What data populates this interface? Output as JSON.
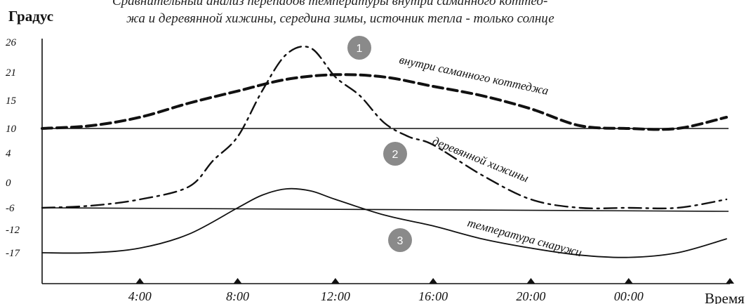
{
  "chart_data": {
    "type": "line",
    "title_line1": "Сравнительный анализ перепадов температуры внутри саманного коттед-",
    "title_line2": "жа и деревянной хижины, середина зимы, источник тепла - только солнце",
    "ylabel": "Градус",
    "xlabel": "Время",
    "y_ticks": [
      "26",
      "21",
      "15",
      "10",
      "4",
      "0",
      "-6",
      "-12",
      "-17"
    ],
    "x_ticks": [
      {
        "label": "4:00",
        "hours": 4
      },
      {
        "label": "8:00",
        "hours": 8
      },
      {
        "label": "12:00",
        "hours": 12
      },
      {
        "label": "16:00",
        "hours": 16
      },
      {
        "label": "20:00",
        "hours": 20
      },
      {
        "label": "00:00",
        "hours": 24
      }
    ],
    "x_range_hours": [
      0,
      28
    ],
    "reference_lines": [
      10,
      -6
    ],
    "series": [
      {
        "name": "внутри саманного коттеджа",
        "style": "dashed",
        "x": [
          0,
          2,
          4,
          6,
          8,
          10,
          12,
          14,
          16,
          18,
          20,
          22,
          24,
          26,
          28
        ],
        "y": [
          10,
          10.5,
          12,
          14.5,
          17,
          19.5,
          20.5,
          20,
          18,
          16,
          13.5,
          10.5,
          10,
          10,
          12
        ]
      },
      {
        "name": "деревянной хижины",
        "style": "dash-dot",
        "x": [
          0,
          2,
          4,
          6,
          7,
          8,
          9,
          10,
          11,
          12,
          13,
          14,
          15,
          16,
          18,
          20,
          22,
          24,
          26,
          28
        ],
        "y": [
          -6,
          -5.5,
          -4,
          -1,
          3,
          8,
          17,
          24,
          25,
          20,
          16,
          11,
          8,
          6,
          1,
          -4,
          -6,
          -6,
          -6,
          -4
        ]
      },
      {
        "name": "температура снаружи",
        "style": "solid",
        "x": [
          0,
          2,
          4,
          6,
          8,
          9,
          10,
          11,
          12,
          14,
          16,
          18,
          20,
          22,
          24,
          26,
          28
        ],
        "y": [
          -17,
          -17,
          -16,
          -13,
          -6,
          -3,
          -1.5,
          -2,
          -4,
          -8,
          -11,
          -14,
          -16,
          -17.5,
          -18,
          -17,
          -14
        ]
      }
    ],
    "annotations": [
      {
        "text": "внутри саманного коттеджа",
        "series": 0
      },
      {
        "text": "деревянной хижины",
        "series": 1
      },
      {
        "text": "температура снаружи",
        "series": 2
      }
    ],
    "badges": [
      "1",
      "2",
      "3"
    ],
    "colors": {
      "line": "#111111",
      "badge": "#8a8a8a",
      "badge_text": "#ffffff"
    }
  }
}
